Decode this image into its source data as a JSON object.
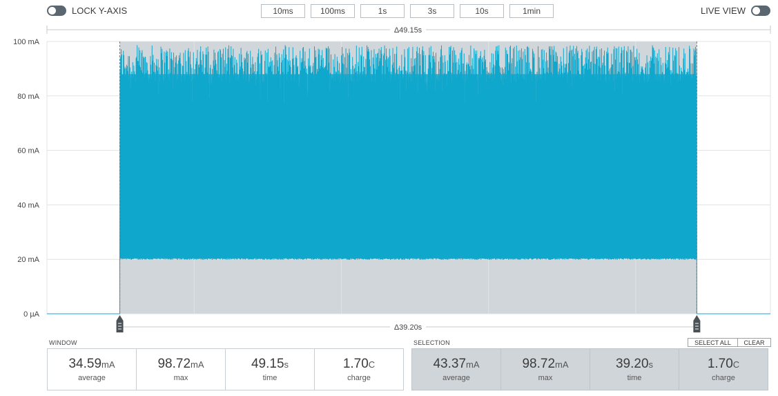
{
  "controls": {
    "lock_y_axis_label": "LOCK Y-AXIS",
    "live_view_label": "LIVE VIEW",
    "window_buttons": [
      "10ms",
      "100ms",
      "1s",
      "3s",
      "10s",
      "1min"
    ]
  },
  "chart_data": {
    "type": "area",
    "y_unit": "mA",
    "yticks": [
      {
        "value": 100,
        "label": "100 mA"
      },
      {
        "value": 80,
        "label": "80 mA"
      },
      {
        "value": 60,
        "label": "60 mA"
      },
      {
        "value": 40,
        "label": "40 mA"
      },
      {
        "value": 20,
        "label": "20 mA"
      },
      {
        "value": 0,
        "label": "0 µA"
      }
    ],
    "ylim": [
      0,
      100
    ],
    "window_seconds": 49.15,
    "window_delta_label": "Δ49.15s",
    "selection_delta_label": "Δ39.20s",
    "selection_start_seconds": 4.95,
    "selection_end_seconds": 44.15,
    "signal": {
      "idle_current": 0,
      "baseline_current": 20,
      "peak_current_range": [
        85,
        98.72
      ],
      "active_start_seconds": 4.95,
      "active_end_seconds": 44.15
    },
    "series_color": "#10a7cc",
    "selection_color": "#d1d6da",
    "grid": true
  },
  "window": {
    "title": "WINDOW",
    "stats": [
      {
        "value": "34.59",
        "unit": "mA",
        "label": "average"
      },
      {
        "value": "98.72",
        "unit": "mA",
        "label": "max"
      },
      {
        "value": "49.15",
        "unit": "s",
        "label": "time"
      },
      {
        "value": "1.70",
        "unit": "C",
        "label": "charge"
      }
    ]
  },
  "selection": {
    "title": "SELECTION",
    "select_all_label": "SELECT ALL",
    "clear_label": "CLEAR",
    "stats": [
      {
        "value": "43.37",
        "unit": "mA",
        "label": "average"
      },
      {
        "value": "98.72",
        "unit": "mA",
        "label": "max"
      },
      {
        "value": "39.20",
        "unit": "s",
        "label": "time"
      },
      {
        "value": "1.70",
        "unit": "C",
        "label": "charge"
      }
    ]
  }
}
